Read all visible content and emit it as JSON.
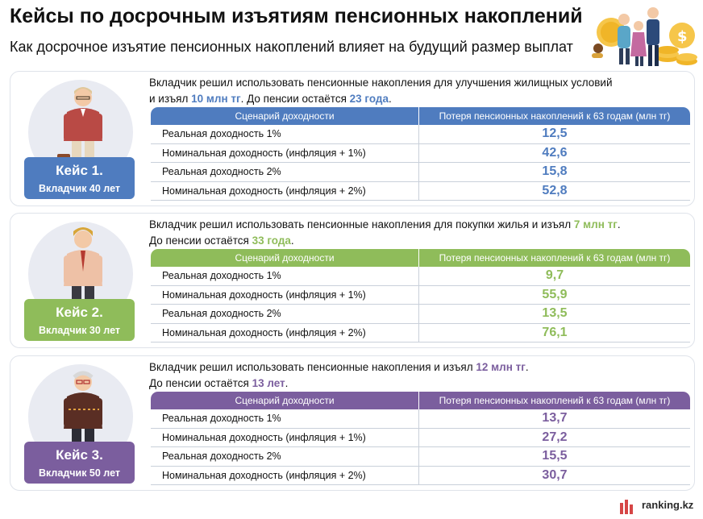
{
  "title": "Кейсы по досрочным изъятиям пенсионных накоплений",
  "subtitle": "Как досрочное изъятие пенсионных накоплений влияет на будущий размер выплат",
  "table_headers": {
    "scenario": "Сценарий доходности",
    "loss": "Потеря пенсионных накоплений к 63 годам (млн тг)"
  },
  "cases": [
    {
      "badge_case": "Кейс 1.",
      "badge_age": "Вкладчик 40 лет",
      "accent": "#4f7cbf",
      "value_color": "#4f7cbf",
      "desc_line1": "Вкладчик решил использовать пенсионные накопления для улучшения жилищных условий",
      "desc_l2_pre": "и изъял ",
      "amount": "10 млн тг",
      "desc_l2_mid": ". До пенсии остаётся ",
      "years": "23 года",
      "desc_l2_post": ".",
      "rows": [
        {
          "scenario": "Реальная доходность 1%",
          "value": "12,5"
        },
        {
          "scenario": "Номинальная доходность (инфляция + 1%)",
          "value": "42,6"
        },
        {
          "scenario": "Реальная доходность 2%",
          "value": "15,8"
        },
        {
          "scenario": "Номинальная доходность (инфляция + 2%)",
          "value": "52,8"
        }
      ]
    },
    {
      "badge_case": "Кейс 2.",
      "badge_age": "Вкладчик 30 лет",
      "accent": "#8fbc5a",
      "value_color": "#8fbc5a",
      "desc_line1_pre": "Вкладчик решил использовать пенсионные накопления для покупки жилья и изъял ",
      "amount": "7 млн тг",
      "desc_line1_post": ".",
      "desc_l2_pre": "До пенсии остаётся ",
      "years": "33 года",
      "desc_l2_post": ".",
      "rows": [
        {
          "scenario": "Реальная доходность 1%",
          "value": "9,7"
        },
        {
          "scenario": "Номинальная доходность (инфляция + 1%)",
          "value": "55,9"
        },
        {
          "scenario": "Реальная доходность 2%",
          "value": "13,5"
        },
        {
          "scenario": "Номинальная доходность (инфляция + 2%)",
          "value": "76,1"
        }
      ]
    },
    {
      "badge_case": "Кейс 3.",
      "badge_age": "Вкладчик 50 лет",
      "accent": "#7b5e9e",
      "value_color": "#7b5e9e",
      "desc_line1_pre": "Вкладчик решил использовать пенсионные накопления и изъял ",
      "amount": "12 млн тг",
      "desc_line1_post": ".",
      "desc_l2_pre": "До пенсии остаётся ",
      "years": "13 лет",
      "desc_l2_post": ".",
      "rows": [
        {
          "scenario": "Реальная доходность 1%",
          "value": "13,7"
        },
        {
          "scenario": "Номинальная доходность (инфляция + 1%)",
          "value": "27,2"
        },
        {
          "scenario": "Реальная доходность 2%",
          "value": "15,5"
        },
        {
          "scenario": "Номинальная доходность (инфляция + 2%)",
          "value": "30,7"
        }
      ]
    }
  ],
  "logo_text": "ranking.kz",
  "icons": {
    "hero": "family-coins-illustration",
    "avatar1": "man-with-briefcase-icon",
    "avatar2": "young-man-icon",
    "avatar3": "older-man-icon",
    "logo": "ranking-logo-bars-icon"
  }
}
